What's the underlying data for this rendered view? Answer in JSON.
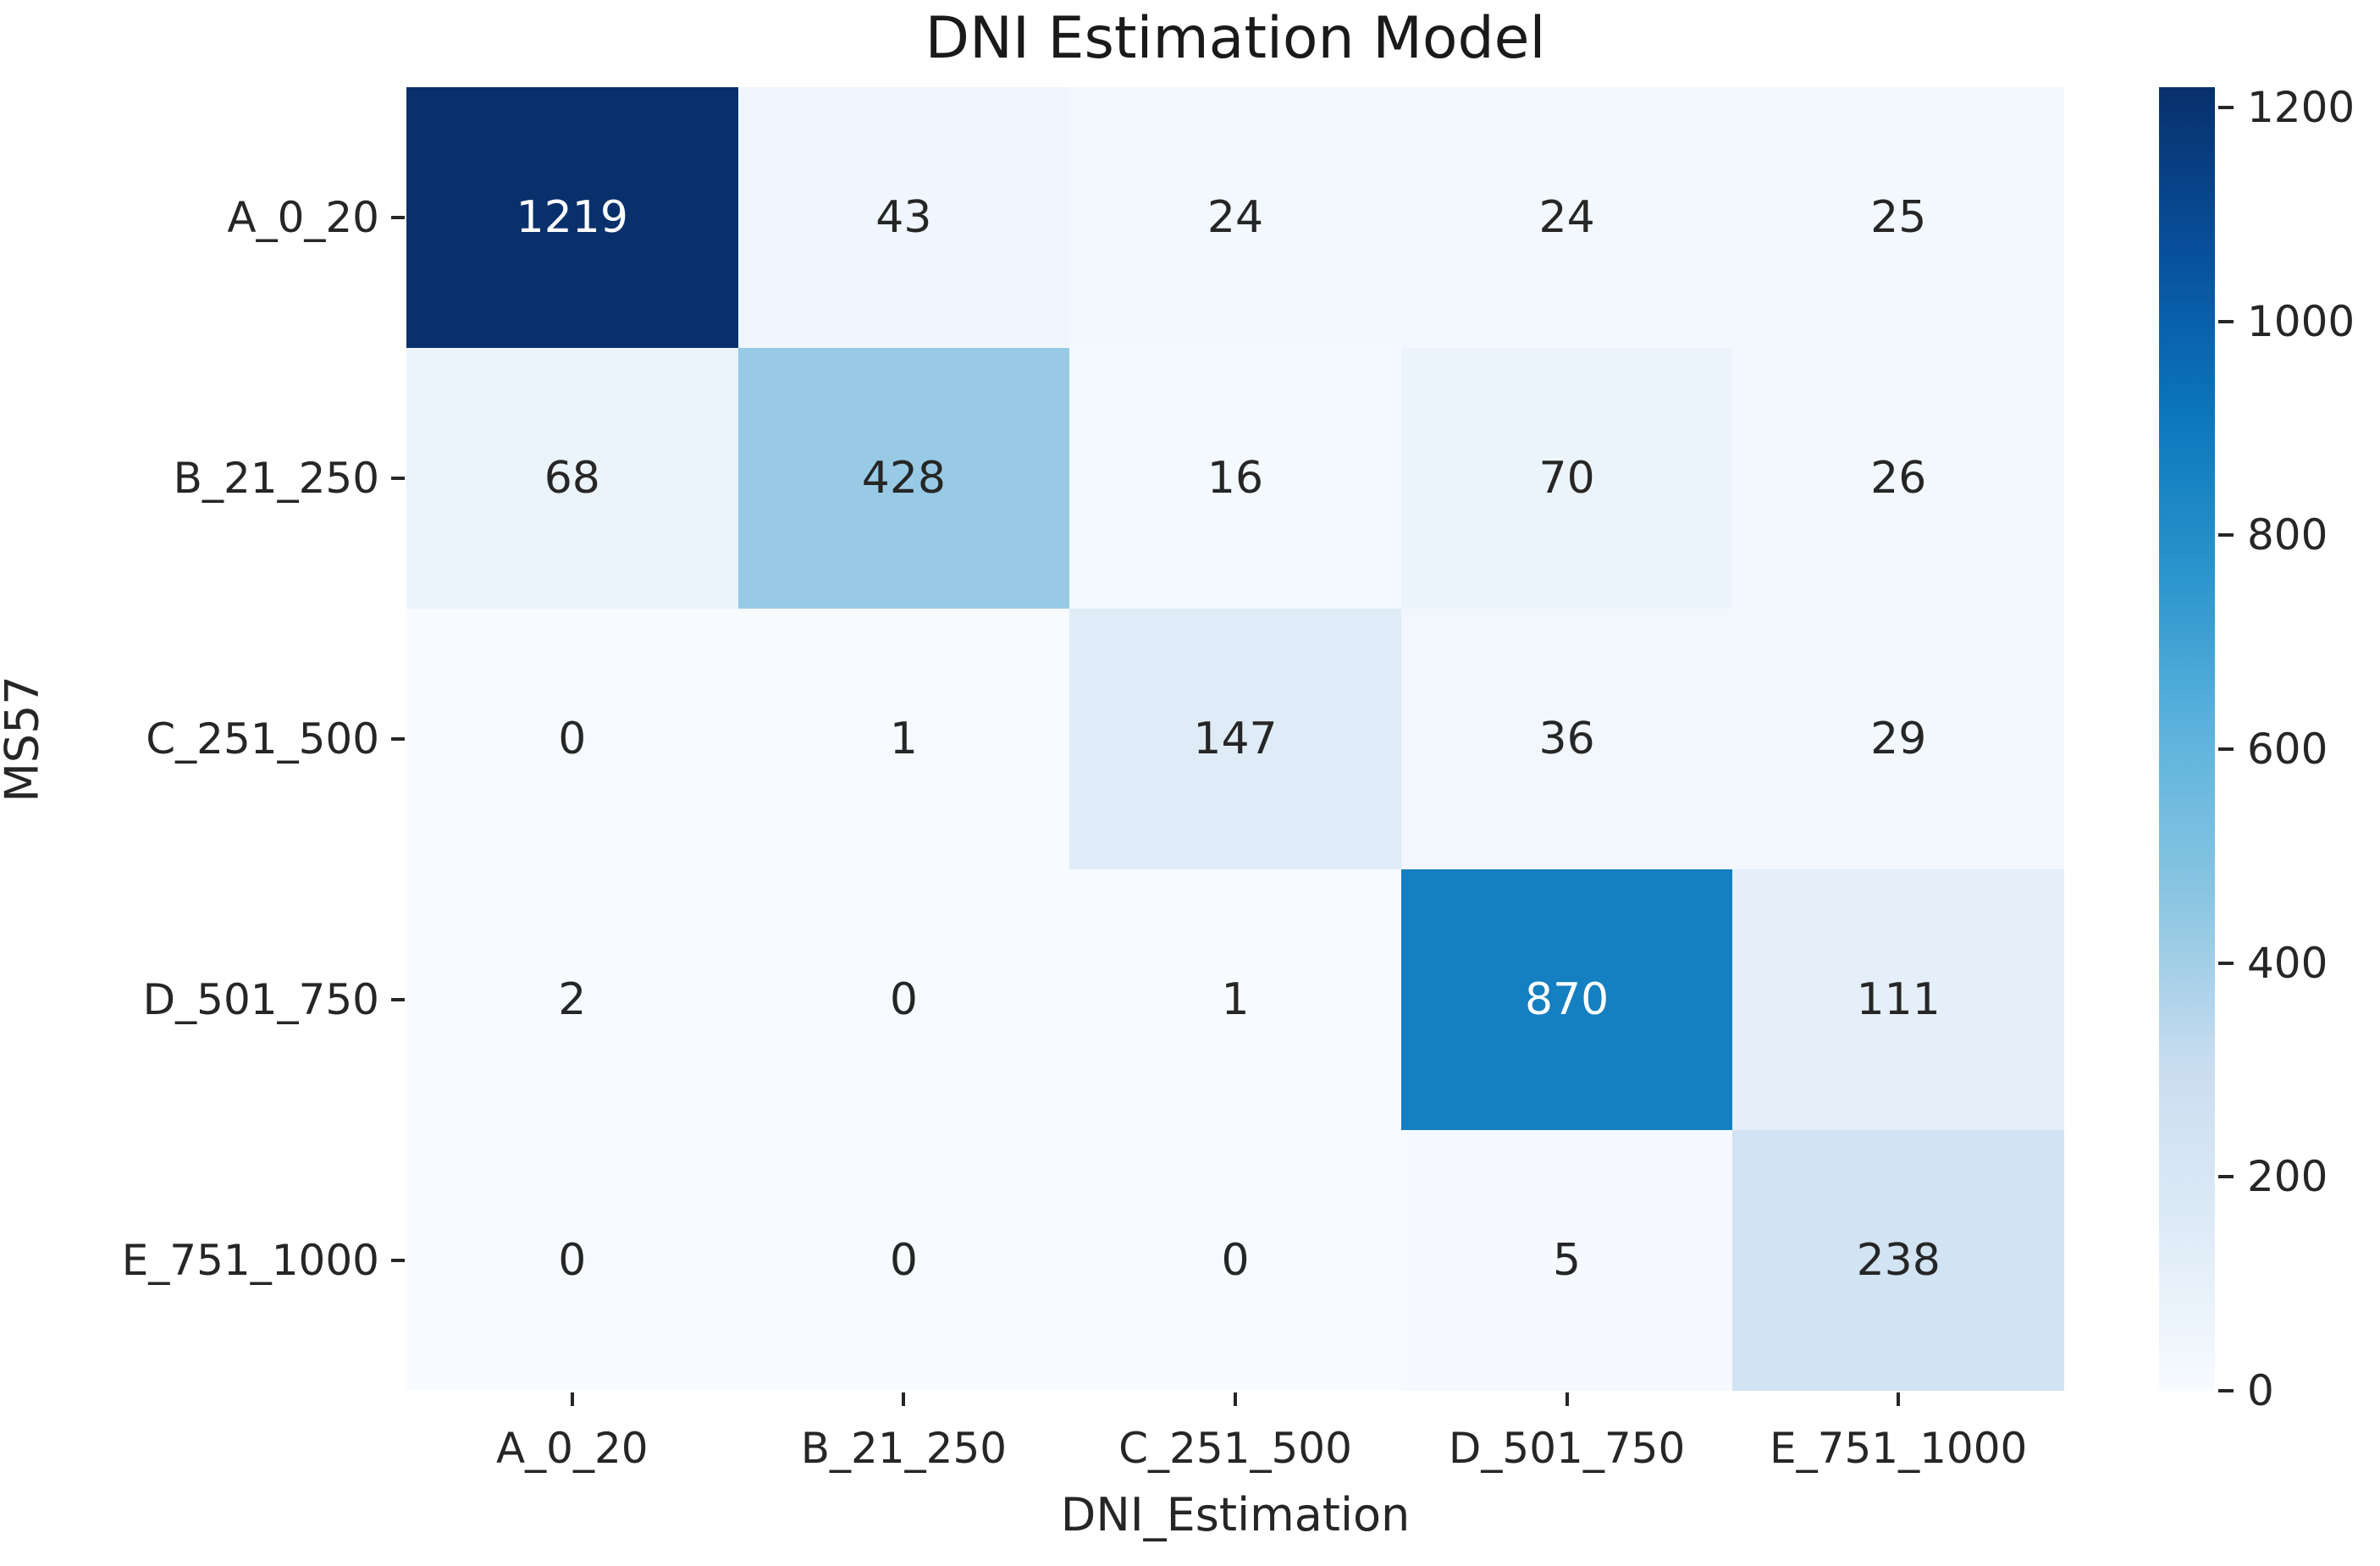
{
  "chart_data": {
    "type": "heatmap",
    "title": "DNI Estimation Model",
    "xlabel": "DNI_Estimation",
    "ylabel": "MS57",
    "x_categories": [
      "A_0_20",
      "B_21_250",
      "C_251_500",
      "D_501_750",
      "E_751_1000"
    ],
    "y_categories": [
      "A_0_20",
      "B_21_250",
      "C_251_500",
      "D_501_750",
      "E_751_1000"
    ],
    "matrix": [
      [
        1219,
        43,
        24,
        24,
        25
      ],
      [
        68,
        428,
        16,
        70,
        26
      ],
      [
        0,
        1,
        147,
        36,
        29
      ],
      [
        2,
        0,
        1,
        870,
        111
      ],
      [
        0,
        0,
        0,
        5,
        238
      ]
    ],
    "vmin": 0,
    "vmax": 1219,
    "colorbar_ticks": [
      0,
      200,
      400,
      600,
      800,
      1000,
      1200
    ],
    "colormap": "Blues",
    "colormap_stops": [
      [
        0.0,
        "#f7fbff"
      ],
      [
        0.125,
        "#deebf7"
      ],
      [
        0.25,
        "#c9ddf0"
      ],
      [
        0.375,
        "#8cc6e2"
      ],
      [
        0.5,
        "#5fb4dd"
      ],
      [
        0.625,
        "#2b95cd"
      ],
      [
        0.75,
        "#0b76bc"
      ],
      [
        0.875,
        "#084f9c"
      ],
      [
        1.0,
        "#08306b"
      ]
    ],
    "annotation_dark_color": "#262626",
    "annotation_light_color": "#ffffff",
    "grid": false,
    "legend_position": "right-colorbar"
  }
}
